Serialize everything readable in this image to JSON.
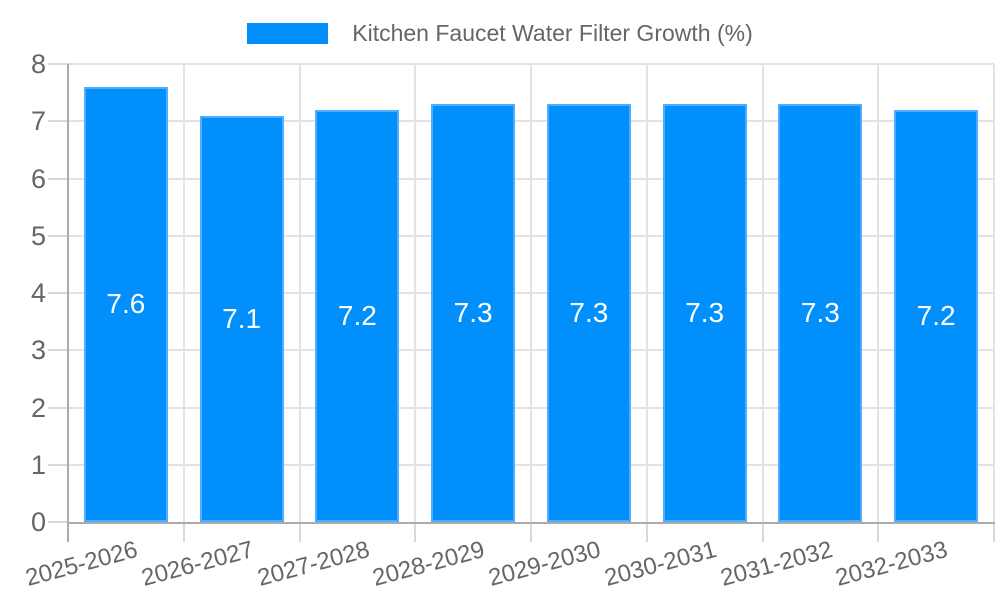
{
  "chart_data": {
    "type": "bar",
    "title": "Kitchen Faucet Water Filter Growth (%)",
    "categories": [
      "2025-2026",
      "2026-2027",
      "2027-2028",
      "2028-2029",
      "2029-2030",
      "2030-2031",
      "2031-2032",
      "2032-2033"
    ],
    "values": [
      7.6,
      7.1,
      7.2,
      7.3,
      7.3,
      7.3,
      7.3,
      7.2
    ],
    "bar_labels": [
      "7.6",
      "7.1",
      "7.2",
      "7.3",
      "7.3",
      "7.3",
      "7.3",
      "7.2"
    ],
    "xlabel": "",
    "ylabel": "",
    "ylim": [
      0,
      8
    ],
    "ytick_labels": [
      "0",
      "1",
      "2",
      "3",
      "4",
      "5",
      "6",
      "7",
      "8"
    ],
    "grid": "on",
    "legend_position": "top",
    "x_label_rotation_deg": -15,
    "colors": {
      "bar": "#008FFB",
      "bar_border": "#4FADFC",
      "bar_label": "#FFFFFF",
      "axis_text": "#666666",
      "gridline": "#E3E3E3",
      "axis_line": "#ABABAB",
      "tick_mark": "#D9D9D9",
      "background": "#FFFFFF"
    }
  },
  "legend": {
    "label": "Kitchen Faucet Water Filter Growth (%)"
  }
}
